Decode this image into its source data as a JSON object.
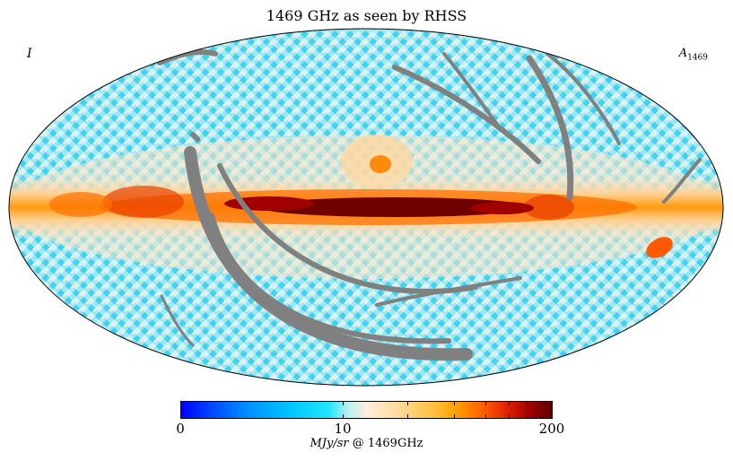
{
  "map": {
    "title": "1469 GHz as seen by RHSS",
    "corner_left": "I",
    "corner_right_main": "A",
    "corner_right_sub": "1469",
    "projection": "mollweide"
  },
  "colorbar": {
    "tick_labels": [
      "0",
      "10",
      "200"
    ],
    "unit_italic": "MJy/sr",
    "unit_rest": " @ 1469GHz",
    "colors": [
      "#0000ff",
      "#00c8ff",
      "#ffeedd",
      "#ffa200",
      "#ff5a00",
      "#600000"
    ]
  },
  "palette": {
    "mask_gray": "#808080",
    "low": "#22d8f0",
    "mid": "#ffe6c8",
    "high": "#ff8000",
    "peak": "#6e0000"
  }
}
